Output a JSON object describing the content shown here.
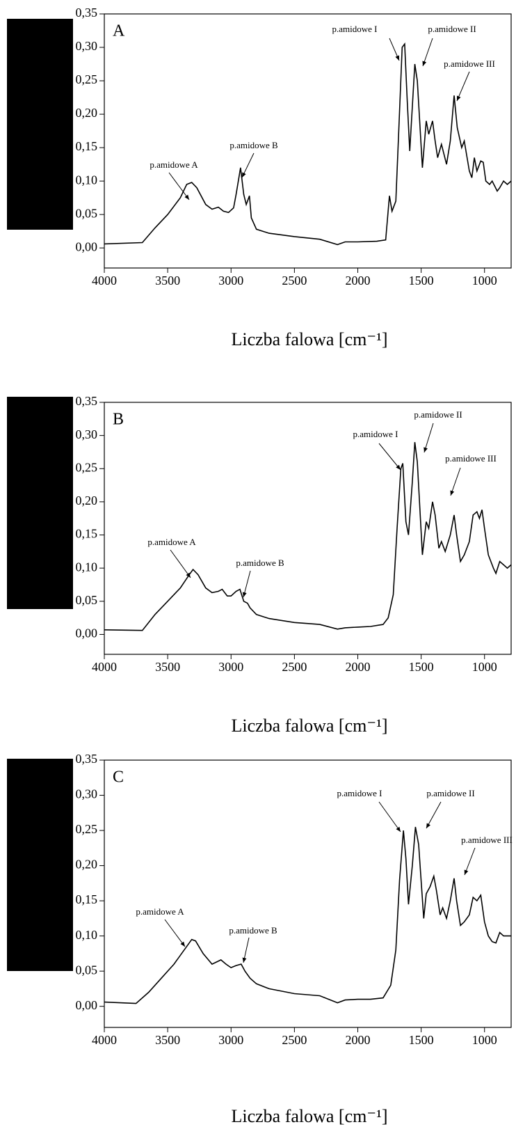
{
  "chart_data": [
    {
      "type": "line",
      "label": "A",
      "xlabel": "Liczba falowa [cm⁻¹]",
      "annotations": [
        "p.amidowe A",
        "p.amidowe B",
        "p.amidowe I",
        "p.amidowe II",
        "p.amidowe III"
      ],
      "color": "#000000",
      "x": [
        4000,
        3700,
        3600,
        3500,
        3400,
        3350,
        3310,
        3270,
        3200,
        3150,
        3100,
        3060,
        3020,
        2980,
        2960,
        2925,
        2900,
        2880,
        2855,
        2840,
        2800,
        2700,
        2500,
        2300,
        2160,
        2100,
        2000,
        1850,
        1780,
        1750,
        1730,
        1700,
        1680,
        1650,
        1630,
        1610,
        1590,
        1550,
        1530,
        1490,
        1460,
        1440,
        1410,
        1390,
        1370,
        1340,
        1300,
        1270,
        1240,
        1215,
        1180,
        1160,
        1120,
        1100,
        1080,
        1060,
        1030,
        1010,
        990,
        960,
        940,
        900,
        880,
        850,
        820,
        790
      ],
      "values": [
        0.006,
        0.008,
        0.03,
        0.05,
        0.075,
        0.095,
        0.098,
        0.09,
        0.065,
        0.058,
        0.061,
        0.055,
        0.053,
        0.06,
        0.08,
        0.12,
        0.08,
        0.065,
        0.078,
        0.045,
        0.028,
        0.022,
        0.017,
        0.013,
        0.005,
        0.009,
        0.009,
        0.01,
        0.012,
        0.078,
        0.055,
        0.07,
        0.16,
        0.3,
        0.305,
        0.22,
        0.145,
        0.275,
        0.25,
        0.12,
        0.19,
        0.17,
        0.19,
        0.16,
        0.135,
        0.155,
        0.125,
        0.16,
        0.228,
        0.18,
        0.15,
        0.16,
        0.115,
        0.105,
        0.135,
        0.115,
        0.13,
        0.128,
        0.1,
        0.095,
        0.1,
        0.085,
        0.09,
        0.1,
        0.095,
        0.1
      ],
      "xlim": [
        4000,
        790
      ],
      "ylim": [
        -0.03,
        0.35
      ],
      "xticks": [
        4000,
        3500,
        3000,
        2500,
        2000,
        1500,
        1000
      ],
      "yticks": [
        {
          "value": 0,
          "label": "0,00"
        },
        {
          "value": 0.05,
          "label": "0,05"
        },
        {
          "value": 0.1,
          "label": "0,10"
        },
        {
          "value": 0.15,
          "label": "0,15"
        },
        {
          "value": 0.2,
          "label": "0,20"
        },
        {
          "value": 0.25,
          "label": "0,25"
        },
        {
          "value": 0.3,
          "label": "0,30"
        },
        {
          "value": 0.35,
          "label": "0,35"
        }
      ]
    },
    {
      "type": "line",
      "label": "B",
      "xlabel": "Liczba falowa [cm⁻¹]",
      "annotations": [
        "p.amidowe A",
        "p.amidowe B",
        "p.amidowe I",
        "p.amidowe II",
        "p.amidowe III"
      ],
      "color": "#000000",
      "x": [
        4000,
        3700,
        3600,
        3500,
        3400,
        3330,
        3300,
        3260,
        3200,
        3150,
        3100,
        3070,
        3030,
        3000,
        2960,
        2930,
        2900,
        2870,
        2850,
        2800,
        2700,
        2500,
        2300,
        2160,
        2100,
        2000,
        1900,
        1800,
        1760,
        1720,
        1690,
        1660,
        1645,
        1620,
        1600,
        1570,
        1550,
        1530,
        1490,
        1460,
        1440,
        1410,
        1390,
        1360,
        1340,
        1310,
        1270,
        1240,
        1220,
        1190,
        1160,
        1120,
        1090,
        1060,
        1040,
        1020,
        1000,
        970,
        930,
        910,
        880,
        850,
        820,
        790
      ],
      "values": [
        0.007,
        0.006,
        0.03,
        0.05,
        0.07,
        0.09,
        0.098,
        0.09,
        0.07,
        0.063,
        0.065,
        0.068,
        0.058,
        0.058,
        0.065,
        0.068,
        0.05,
        0.047,
        0.04,
        0.03,
        0.024,
        0.018,
        0.015,
        0.008,
        0.01,
        0.011,
        0.012,
        0.015,
        0.025,
        0.06,
        0.16,
        0.25,
        0.258,
        0.17,
        0.15,
        0.23,
        0.29,
        0.26,
        0.12,
        0.17,
        0.16,
        0.2,
        0.18,
        0.13,
        0.14,
        0.125,
        0.15,
        0.18,
        0.15,
        0.11,
        0.12,
        0.14,
        0.18,
        0.185,
        0.175,
        0.188,
        0.16,
        0.12,
        0.1,
        0.092,
        0.11,
        0.105,
        0.1,
        0.105
      ],
      "xlim": [
        4000,
        790
      ],
      "ylim": [
        -0.03,
        0.35
      ],
      "xticks": [
        4000,
        3500,
        3000,
        2500,
        2000,
        1500,
        1000
      ],
      "yticks": [
        {
          "value": 0,
          "label": "0,00"
        },
        {
          "value": 0.05,
          "label": "0,05"
        },
        {
          "value": 0.1,
          "label": "0,10"
        },
        {
          "value": 0.15,
          "label": "0,15"
        },
        {
          "value": 0.2,
          "label": "0,20"
        },
        {
          "value": 0.25,
          "label": "0,25"
        },
        {
          "value": 0.3,
          "label": "0,30"
        },
        {
          "value": 0.35,
          "label": "0,35"
        }
      ]
    },
    {
      "type": "line",
      "label": "C",
      "xlabel": "Liczba falowa [cm⁻¹]",
      "annotations": [
        "p.amidowe A",
        "p.amidowe B",
        "p.amidowe I",
        "p.amidowe II",
        "p.amidowe III"
      ],
      "color": "#000000",
      "x": [
        4000,
        3750,
        3650,
        3550,
        3450,
        3370,
        3310,
        3280,
        3220,
        3150,
        3080,
        3040,
        3000,
        2960,
        2920,
        2890,
        2850,
        2800,
        2700,
        2500,
        2300,
        2160,
        2100,
        2000,
        1900,
        1800,
        1740,
        1700,
        1670,
        1640,
        1620,
        1600,
        1570,
        1545,
        1520,
        1480,
        1460,
        1430,
        1400,
        1380,
        1350,
        1330,
        1300,
        1270,
        1240,
        1220,
        1190,
        1160,
        1120,
        1090,
        1060,
        1030,
        1000,
        970,
        940,
        910,
        880,
        850,
        820,
        790
      ],
      "values": [
        0.006,
        0.004,
        0.02,
        0.04,
        0.06,
        0.08,
        0.095,
        0.093,
        0.075,
        0.06,
        0.066,
        0.06,
        0.055,
        0.058,
        0.06,
        0.05,
        0.04,
        0.032,
        0.025,
        0.018,
        0.015,
        0.005,
        0.009,
        0.01,
        0.01,
        0.012,
        0.03,
        0.08,
        0.18,
        0.25,
        0.21,
        0.145,
        0.2,
        0.255,
        0.23,
        0.125,
        0.16,
        0.17,
        0.185,
        0.165,
        0.13,
        0.14,
        0.125,
        0.15,
        0.182,
        0.15,
        0.115,
        0.12,
        0.13,
        0.155,
        0.15,
        0.158,
        0.12,
        0.1,
        0.092,
        0.09,
        0.105,
        0.1,
        0.1,
        0.1
      ],
      "xlim": [
        4000,
        790
      ],
      "ylim": [
        -0.03,
        0.35
      ],
      "xticks": [
        4000,
        3500,
        3000,
        2500,
        2000,
        1500,
        1000
      ],
      "yticks": [
        {
          "value": 0,
          "label": "0,00"
        },
        {
          "value": 0.05,
          "label": "0,05"
        },
        {
          "value": 0.1,
          "label": "0,10"
        },
        {
          "value": 0.15,
          "label": "0,15"
        },
        {
          "value": 0.2,
          "label": "0,20"
        },
        {
          "value": 0.25,
          "label": "0,25"
        },
        {
          "value": 0.3,
          "label": "0,30"
        },
        {
          "value": 0.35,
          "label": "0,35"
        }
      ]
    }
  ]
}
